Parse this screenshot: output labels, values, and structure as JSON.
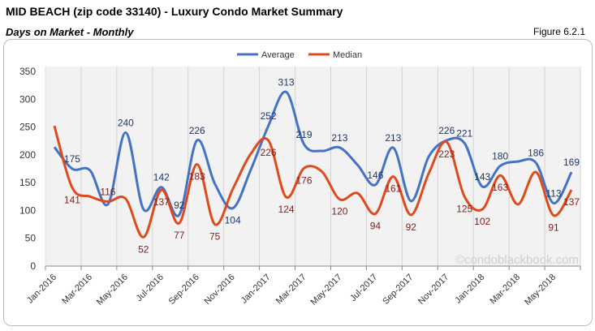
{
  "header": {
    "title": "MID BEACH (zip code 33140) - Luxury Condo Market Summary",
    "subtitle": "Days on Market - Monthly",
    "figure": "Figure 6.2.1"
  },
  "watermark": "©condoblackbook.com",
  "chart_data": {
    "type": "line",
    "categories": [
      "Jan-2016",
      "Feb-2016",
      "Mar-2016",
      "Apr-2016",
      "May-2016",
      "Jun-2016",
      "Jul-2016",
      "Aug-2016",
      "Sep-2016",
      "Oct-2016",
      "Nov-2016",
      "Dec-2016",
      "Jan-2017",
      "Feb-2017",
      "Mar-2017",
      "Apr-2017",
      "May-2017",
      "Jun-2017",
      "Jul-2017",
      "Aug-2017",
      "Sep-2017",
      "Oct-2017",
      "Nov-2017",
      "Dec-2017",
      "Jan-2018",
      "Feb-2018",
      "Mar-2018",
      "Apr-2018",
      "May-2018",
      "Jun-2018"
    ],
    "tick_labels": [
      "Jan-2016",
      "Mar-2016",
      "May-2016",
      "Jul-2016",
      "Sep-2016",
      "Nov-2016",
      "Jan-2017",
      "Mar-2017",
      "May-2017",
      "Jul-2017",
      "Sep-2017",
      "Nov-2017",
      "Jan-2018",
      "Mar-2018",
      "May-2018"
    ],
    "series": [
      {
        "name": "Average",
        "color": "#4472c4",
        "values": [
          214,
          175,
          172,
          111,
          240,
          102,
          142,
          92,
          226,
          148,
          104,
          172,
          252,
          313,
          219,
          207,
          213,
          182,
          146,
          213,
          117,
          197,
          226,
          221,
          143,
          180,
          188,
          186,
          113,
          169
        ],
        "labeled": [
          false,
          true,
          false,
          false,
          true,
          false,
          true,
          true,
          true,
          false,
          true,
          false,
          true,
          true,
          true,
          false,
          true,
          false,
          true,
          true,
          false,
          false,
          true,
          true,
          true,
          true,
          false,
          true,
          true,
          true
        ]
      },
      {
        "name": "Median",
        "color": "#e0491c",
        "values": [
          252,
          141,
          125,
          116,
          121,
          52,
          137,
          77,
          183,
          75,
          138,
          201,
          226,
          124,
          176,
          170,
          120,
          131,
          94,
          161,
          92,
          167,
          223,
          125,
          102,
          163,
          111,
          169,
          91,
          137
        ],
        "labeled": [
          false,
          true,
          false,
          true,
          false,
          true,
          true,
          true,
          true,
          true,
          false,
          false,
          true,
          true,
          true,
          false,
          true,
          false,
          true,
          true,
          true,
          false,
          true,
          true,
          true,
          true,
          false,
          false,
          true,
          true
        ]
      }
    ],
    "ylim": [
      0,
      350
    ],
    "yticks": [
      0,
      50,
      100,
      150,
      200,
      250,
      300,
      350
    ],
    "legend": "top-center",
    "grid": "vertical"
  }
}
